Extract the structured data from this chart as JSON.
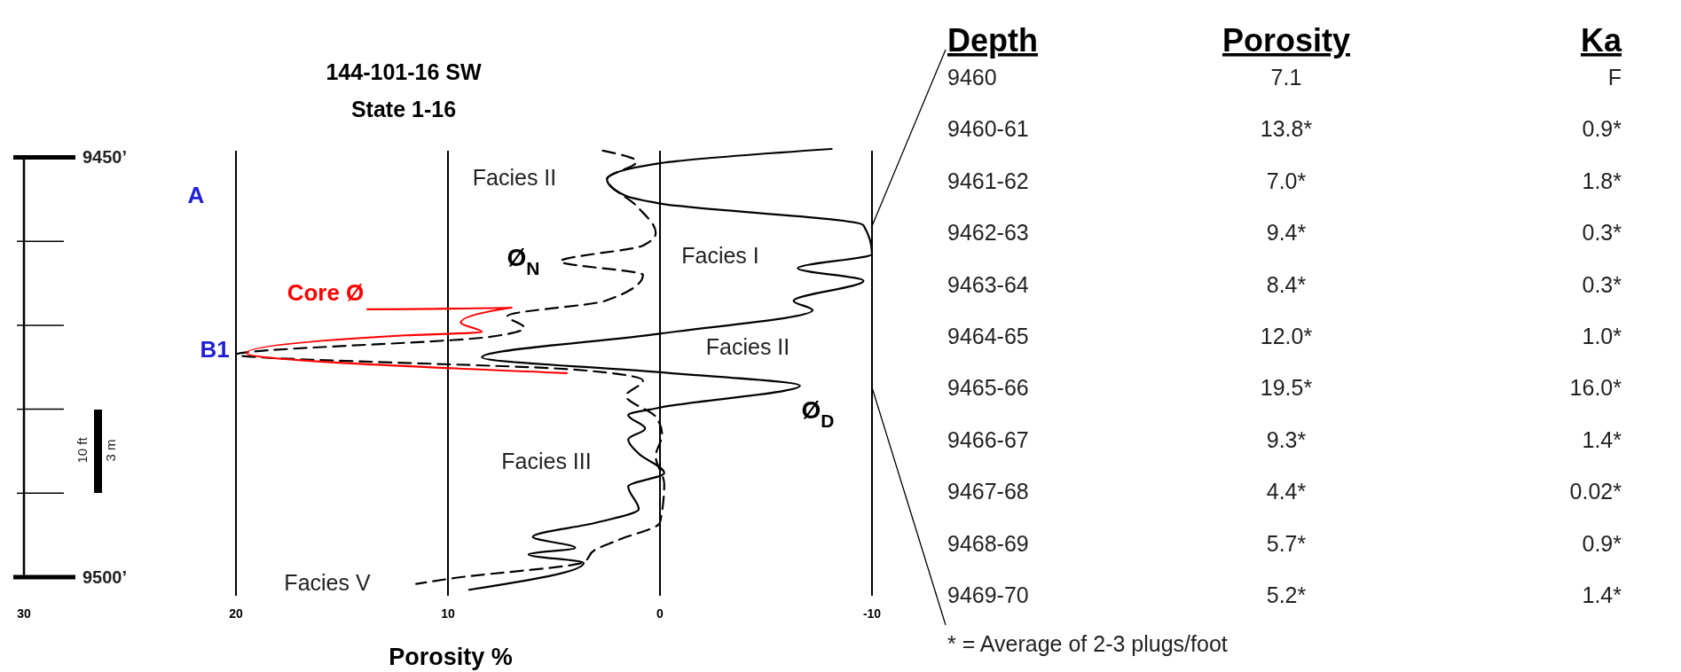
{
  "chart_data": [
    {
      "type": "line",
      "title": "144-101-16 SW",
      "subtitle": "State 1-16",
      "xlabel": "Porosity %",
      "xlim": [
        30,
        -10
      ],
      "xticks": [
        30,
        20,
        10,
        0,
        -10
      ],
      "ylim": [
        9502,
        9449
      ],
      "yticks": [
        {
          "value": 9450,
          "label": "9450’"
        },
        {
          "value": 9460,
          "label": null
        },
        {
          "value": 9470,
          "label": null
        },
        {
          "value": 9480,
          "label": null
        },
        {
          "value": 9490,
          "label": null
        },
        {
          "value": 9500,
          "label": "9500’"
        }
      ],
      "grid": "x",
      "series": [
        {
          "color": "#000000",
          "line_style": "solid",
          "x": [
            -8.1,
            0,
            2.5,
            1.6,
            0,
            -9.6,
            -10,
            -6.5,
            -9.6,
            -6.3,
            -7.2,
            0,
            8.4,
            0,
            -6.6,
            0,
            1.5,
            0.7,
            1.5,
            1.0,
            -0.2,
            1.5,
            1.0,
            3,
            6.0,
            4.0,
            6.2,
            3.6,
            9.0
          ],
          "values": [
            9449,
            9450.7,
            9452.6,
            9454.6,
            9455.5,
            9458.1,
            9461.5,
            9463.2,
            9464.7,
            9467.1,
            9468.2,
            9471,
            9473.8,
            9475.6,
            9477.2,
            9479.8,
            9480.7,
            9482.3,
            9483.6,
            9485.3,
            9487.6,
            9489.2,
            9491.9,
            9493.5,
            9495.2,
            9496.5,
            9497.3,
            9498.3,
            9501.5
          ]
        },
        {
          "color": "#000000",
          "line_style": "dashed",
          "x": [
            2.7,
            1.1,
            2.5,
            1.1,
            0.2,
            0.8,
            4.7,
            0.8,
            2.6,
            7.2,
            6.4,
            8.1,
            20,
            3.9,
            0.8,
            1.6,
            0.2,
            -0.1,
            0.2,
            -0.2,
            0,
            2.0,
            3.1,
            3.6,
            9.7,
            11.5
          ],
          "values": [
            9449.2,
            9450.5,
            9452.6,
            9455.8,
            9459,
            9460.5,
            9462.4,
            9464,
            9467.1,
            9468.9,
            9470.3,
            9471.4,
            9473.5,
            9475.3,
            9476.6,
            9478.4,
            9480.9,
            9483,
            9485.6,
            9488.9,
            9493.5,
            9495.6,
            9496.8,
            9498.2,
            9500.1,
            9500.8
          ]
        },
        {
          "color": "#ff0000",
          "line_style": "solid",
          "x": [
            13.8,
            7.0,
            9.4,
            8.4,
            12.0,
            19.5,
            4.4
          ],
          "values": [
            9468.1,
            9467.9,
            9469.7,
            9470.8,
            9471.2,
            9473.3,
            9475.7
          ]
        }
      ],
      "annotations": [
        "Facies II",
        "Ø$_{N}$",
        "Facies I",
        "Facies II",
        "Ø$_{D}$",
        "Core Ø",
        "Facies III",
        "Facies V",
        "A",
        "B1",
        "10 ft",
        "3 m"
      ]
    },
    {
      "type": "other",
      "annotations": [
        "Depth",
        "Porosity",
        "Ka",
        "9460",
        "7.1",
        "F",
        "9460-61",
        "13.8*",
        "0.9*",
        "9461-62",
        "7.0*",
        "1.8*",
        "9462-63",
        "9.4*",
        "0.3*",
        "9463-64",
        "8.4*",
        "0.3*",
        "9464-65",
        "12.0*",
        "1.0*",
        "9465-66",
        "19.5*",
        "16.0*",
        "9466-67",
        "9.3*",
        "1.4*",
        "9467-68",
        "4.4*",
        "0.02*",
        "9468-69",
        "5.7*",
        "0.9*",
        "9469-70",
        "5.2*",
        "1.4*",
        "* = Average of 2-3 plugs/foot"
      ]
    }
  ]
}
